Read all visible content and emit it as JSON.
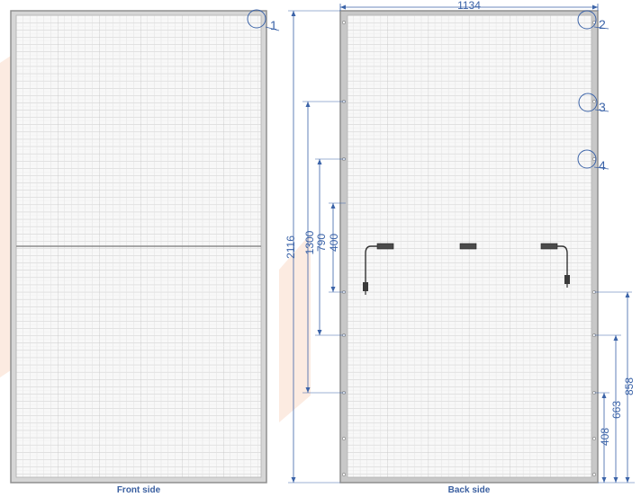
{
  "captions": {
    "front": "Front side",
    "back": "Back side"
  },
  "dimensions": {
    "width": "1134",
    "height": "2116",
    "d1300": "1300",
    "d790": "790",
    "d400": "400",
    "d858": "858",
    "d663": "663",
    "d408": "408"
  },
  "callouts": {
    "c1": "1",
    "c2": "2",
    "c3": "3",
    "c4": "4"
  },
  "colors": {
    "frame": "#9a9a9a",
    "cell_line": "#cfcfcf",
    "cell_fill": "#f7f7f7",
    "dimension": "#3b63a8",
    "watermark": "#fbe8dc"
  }
}
